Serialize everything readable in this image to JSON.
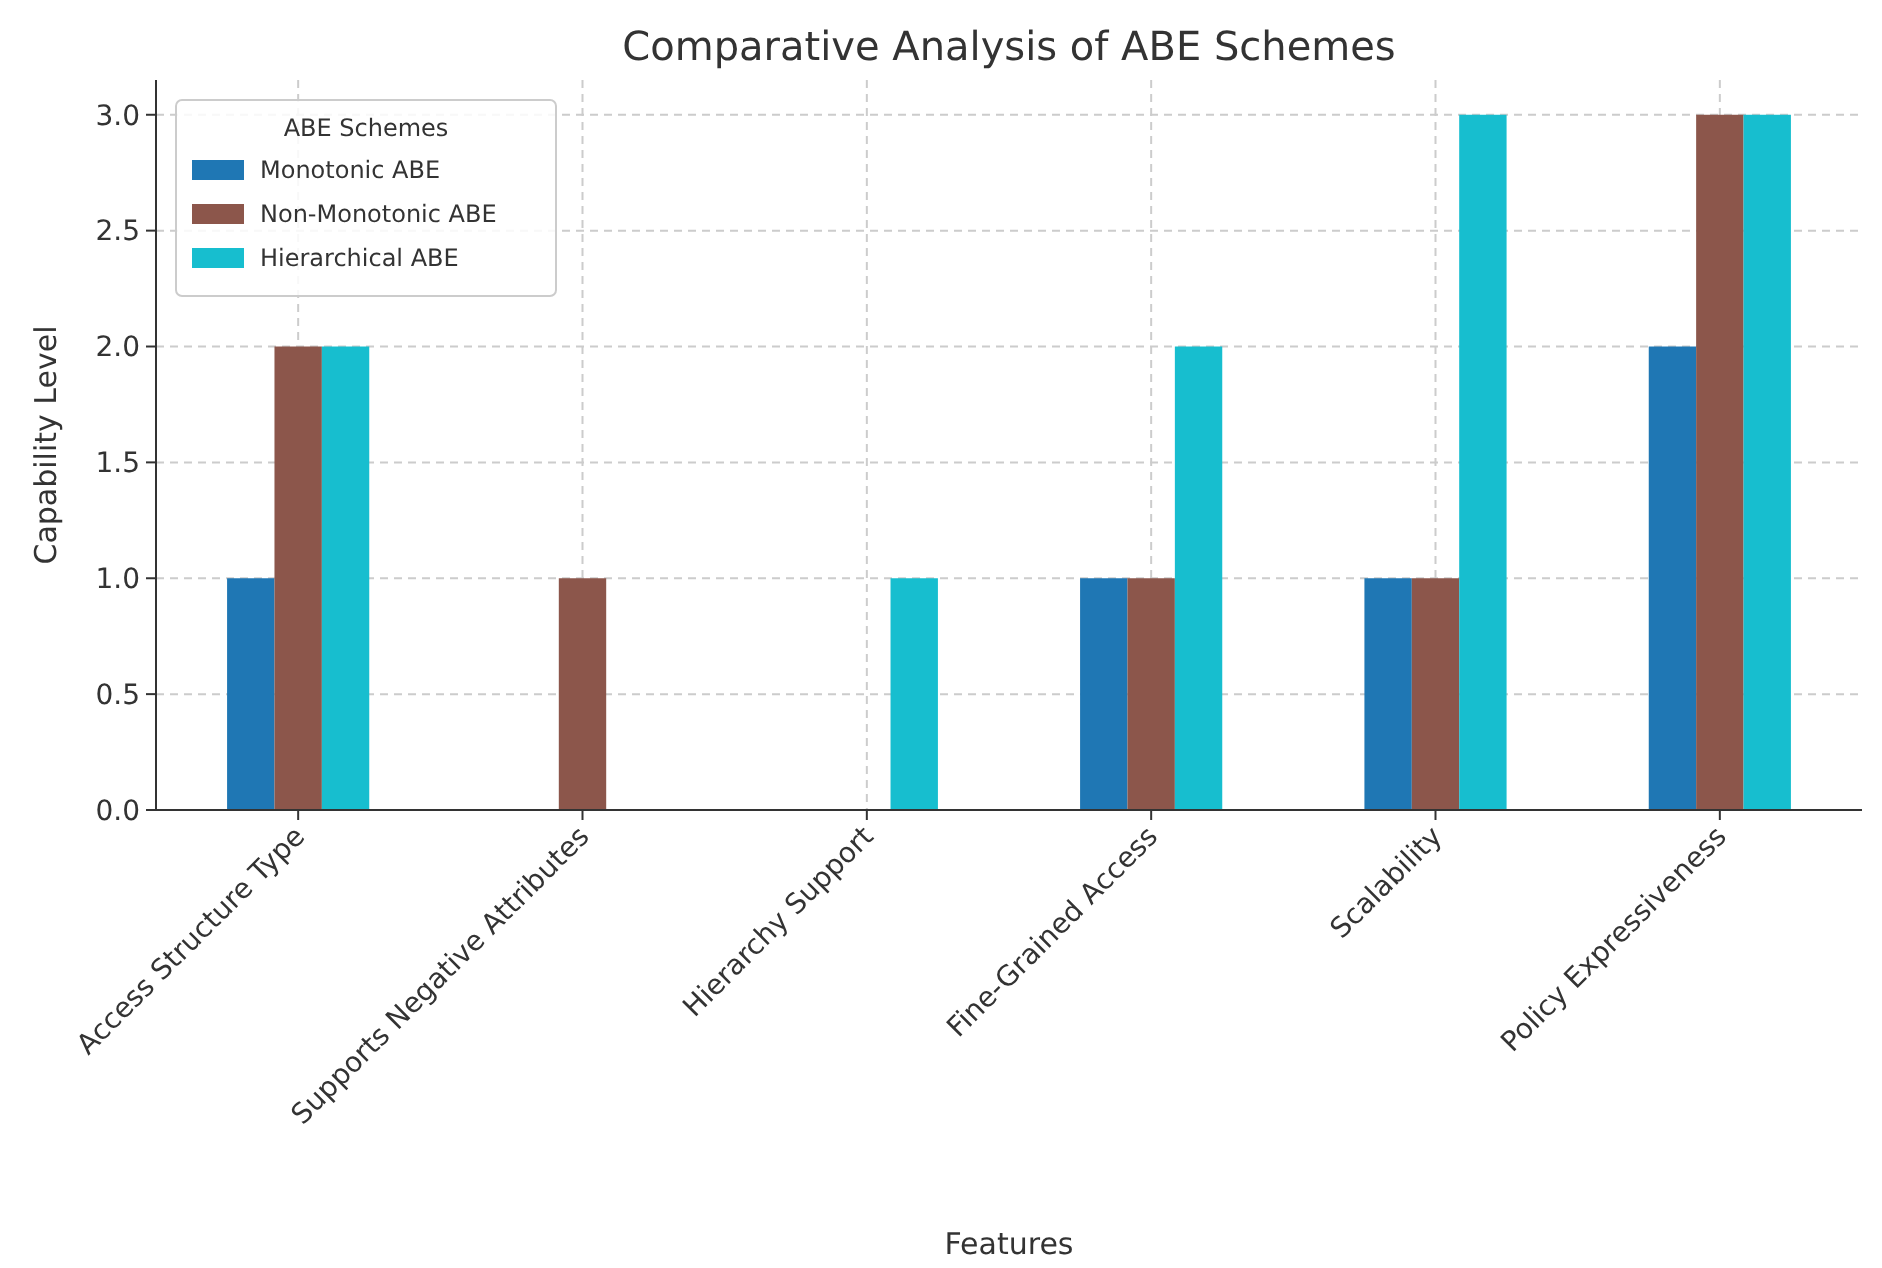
{
  "chart_data": {
    "type": "bar",
    "title": "Comparative Analysis of ABE Schemes",
    "xlabel": "Features",
    "ylabel": "Capability Level",
    "legend_title": "ABE Schemes",
    "categories": [
      "Access Structure Type",
      "Supports Negative Attributes",
      "Hierarchy Support",
      "Fine-Grained Access",
      "Scalability",
      "Policy Expressiveness"
    ],
    "series": [
      {
        "name": "Monotonic ABE",
        "color": "#1f77b4",
        "values": [
          1,
          0,
          0,
          1,
          1,
          2
        ]
      },
      {
        "name": "Non-Monotonic ABE",
        "color": "#8c564b",
        "values": [
          2,
          1,
          0,
          1,
          1,
          3
        ]
      },
      {
        "name": "Hierarchical ABE",
        "color": "#17becf",
        "values": [
          2,
          0,
          1,
          2,
          3,
          3
        ]
      }
    ],
    "ylim": [
      0,
      3.15
    ],
    "yticks": [
      {
        "value": 0,
        "label": "0.0"
      },
      {
        "value": 0.5,
        "label": "0.5"
      },
      {
        "value": 1,
        "label": "1.0"
      },
      {
        "value": 1.5,
        "label": "1.5"
      },
      {
        "value": 2,
        "label": "2.0"
      },
      {
        "value": 2.5,
        "label": "2.5"
      },
      {
        "value": 3,
        "label": "3.0"
      }
    ],
    "grid": true,
    "legend": "top left"
  }
}
